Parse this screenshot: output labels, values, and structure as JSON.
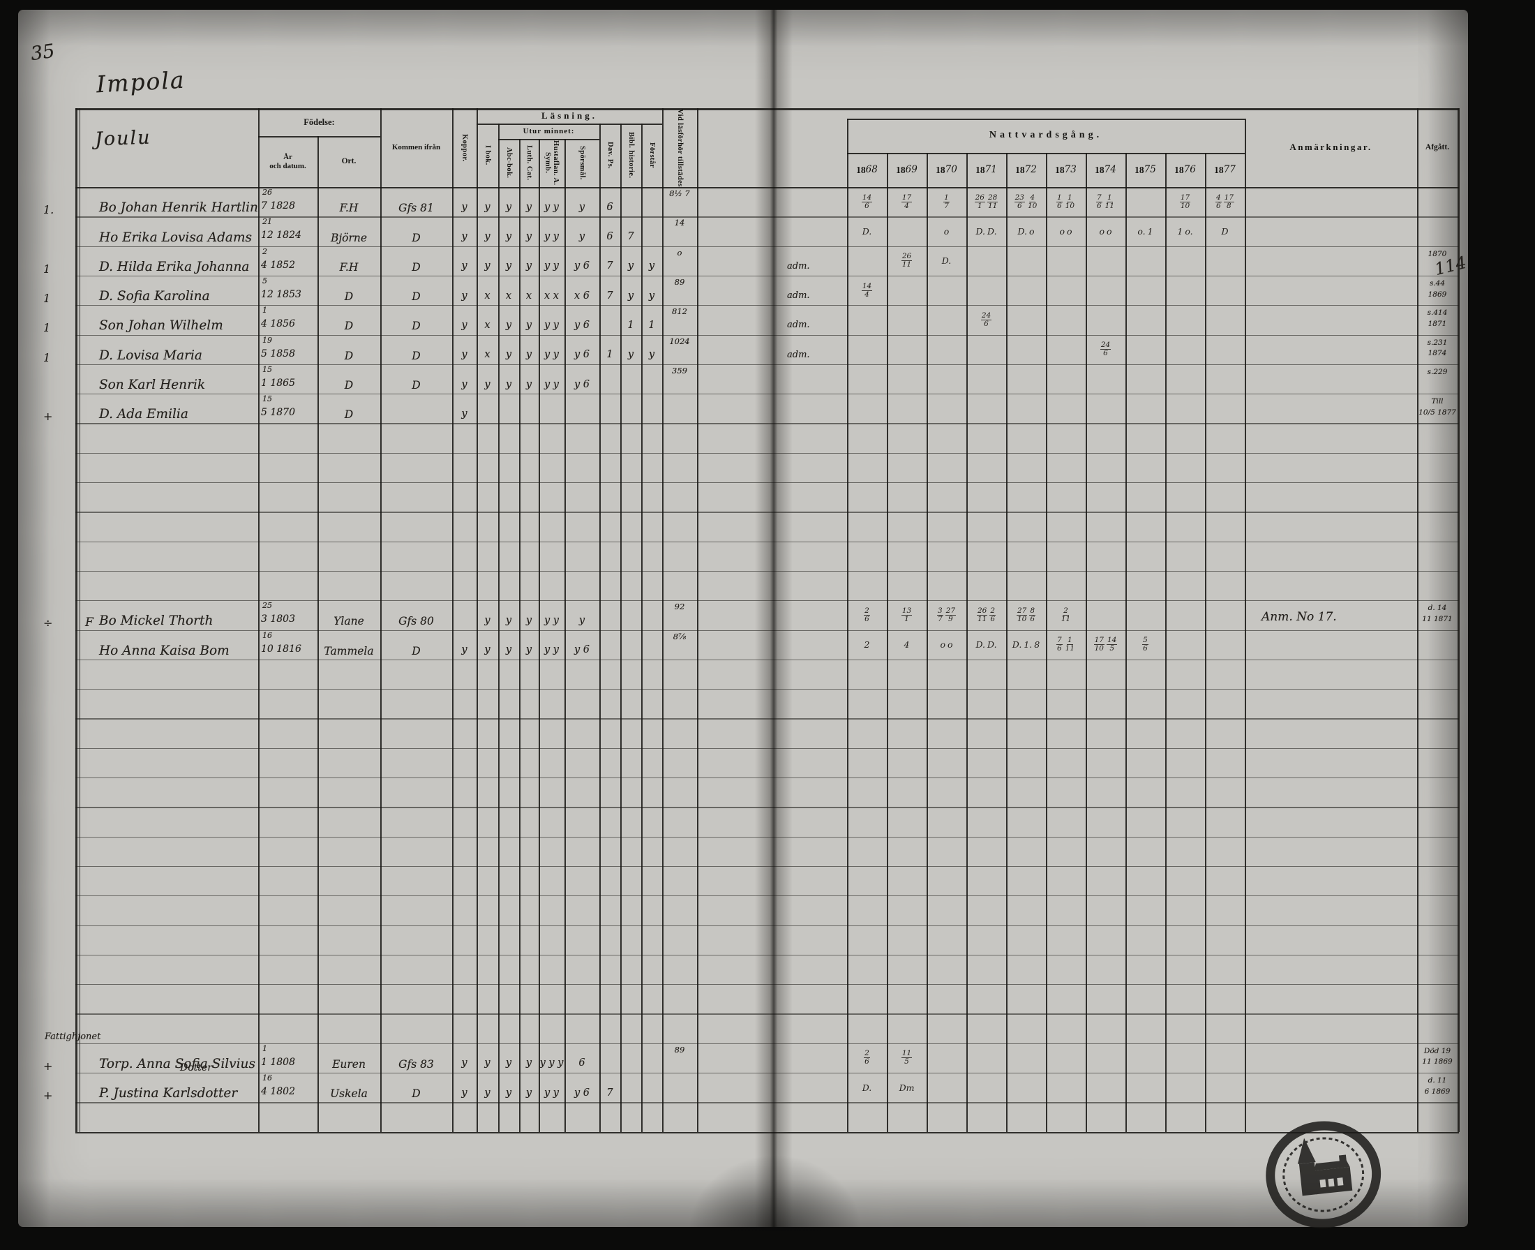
{
  "page": {
    "number": "35",
    "title": "Impola",
    "subtitle": "Joulu"
  },
  "header": {
    "birth_group": "Födelse:",
    "birth_date": "År och datum.",
    "birth_place": "Ort.",
    "arrived_from": "Kommen ifrån",
    "smallpox": "Koppor.",
    "reading_group": "Läsning.",
    "in_book": "I bok.",
    "by_heart": "Utur minnet:",
    "abc_book": "Abc-bok.",
    "luth_cat": "Luth. Cat.",
    "symb": "Hustaflan. A. Symb.",
    "questions": "Spörsmål.",
    "dav_ps": "Dav. Ps.",
    "bibl_hist": "Bibl. historie.",
    "understands": "Förstår",
    "attended": "Vid läsförhör tillstädes",
    "communion_group": "Nattvardsgång.",
    "years": [
      "1868",
      "1869",
      "1870",
      "1871",
      "1872",
      "1873",
      "1874",
      "1875",
      "1876",
      "1877"
    ],
    "remarks": "Anmärkningar.",
    "departed": "Afgått."
  },
  "section_heading": "Fattighjonet",
  "marginal_note": "114",
  "stamp": "church-parish-seal",
  "rows": [
    {
      "mark": "1.",
      "name": "Bo Johan Henrik Hartlin",
      "dtop": "26",
      "dbot": "7 1828",
      "ort": "F.H",
      "from": "Gfs 81",
      "marks": [
        "y",
        "y",
        "y",
        "y",
        "y y",
        "y",
        "6",
        "",
        ""
      ],
      "vid": "8½ 7",
      "comm": [
        "14/6",
        "17/4",
        "1/7",
        "26/1 28/11",
        "23/6 4/10",
        "1/6 1/10",
        "7/6 1/11",
        "",
        "17/10",
        "4/6 17/8"
      ]
    },
    {
      "name": "Ho Erika Lovisa Adams",
      "dtop": "21",
      "dbot": "12 1824",
      "ort": "Björne",
      "from": "D",
      "marks": [
        "y",
        "y",
        "y",
        "y",
        "y y",
        "y",
        "6",
        "7",
        ""
      ],
      "vid": "14",
      "comm": [
        "D.",
        "",
        "o",
        "D. D.",
        "D. o",
        "o o",
        "o o",
        "o. 1",
        "1 o.",
        "D"
      ]
    },
    {
      "mark": "1",
      "name": "D. Hilda Erika Johanna",
      "dtop": "2",
      "dbot": "4 1852",
      "ort": "F.H",
      "from": "D",
      "marks": [
        "y",
        "y",
        "y",
        "y",
        "y y",
        "y 6",
        "7",
        "y",
        "y"
      ],
      "vid": "o",
      "adm": "adm.",
      "comm": [
        "",
        "26/11",
        "D.",
        "",
        "",
        "",
        "",
        "",
        "",
        ""
      ],
      "afg": "1870"
    },
    {
      "mark": "1",
      "name": "D. Sofia Karolina",
      "dtop": "5",
      "dbot": "12 1853",
      "ort": "D",
      "from": "D",
      "marks": [
        "y",
        "x",
        "x",
        "x",
        "x x",
        "x 6",
        "7",
        "y",
        "y"
      ],
      "vid": "89",
      "adm": "adm.",
      "comm": [
        "14/4",
        "",
        "",
        "",
        "",
        "",
        "",
        "",
        "",
        ""
      ],
      "afg": "s.44",
      "afg2": "1869"
    },
    {
      "mark": "1",
      "name": "Son Johan Wilhelm",
      "dtop": "1",
      "dbot": "4 1856",
      "ort": "D",
      "from": "D",
      "marks": [
        "y",
        "x",
        "y",
        "y",
        "y y",
        "y 6",
        "",
        "1",
        "1"
      ],
      "vid": "812",
      "adm": "adm.",
      "comm": [
        "",
        "",
        "",
        "24/6",
        "",
        "",
        "",
        "",
        "",
        ""
      ],
      "afg": "s.414",
      "afg2": "1871"
    },
    {
      "mark": "1",
      "name": "D. Lovisa Maria",
      "dtop": "19",
      "dbot": "5 1858",
      "ort": "D",
      "from": "D",
      "marks": [
        "y",
        "x",
        "y",
        "y",
        "y y",
        "y 6",
        "1",
        "y",
        "y"
      ],
      "vid": "1024",
      "adm": "adm.",
      "comm": [
        "",
        "",
        "",
        "",
        "",
        "",
        "24/6",
        "",
        "",
        ""
      ],
      "afg": "s.231",
      "afg2": "1874"
    },
    {
      "name": "Son Karl Henrik",
      "dtop": "15",
      "dbot": "1 1865",
      "ort": "D",
      "from": "D",
      "marks": [
        "y",
        "y",
        "y",
        "y",
        "y y",
        "y 6",
        "",
        "",
        ""
      ],
      "vid": "359",
      "afg": "s.229"
    },
    {
      "mark": "+",
      "name": "D. Ada Emilia",
      "dtop": "15",
      "dbot": "5 1870",
      "ort": "D",
      "from": "",
      "marks": [
        "y",
        "",
        "",
        "",
        "",
        "",
        "",
        "",
        ""
      ],
      "afg": "Till",
      "afg2": "10/5 1877"
    },
    {},
    {},
    {},
    {},
    {},
    {},
    {
      "mark": "÷",
      "pre": "F",
      "name": "Bo Mickel Thorth",
      "dtop": "25",
      "dbot": "3 1803",
      "ort": "Ylane",
      "from": "Gfs 80",
      "marks": [
        "",
        "y",
        "y",
        "y",
        "y y",
        "y",
        "",
        "",
        ""
      ],
      "vid": "92",
      "comm": [
        "2/6",
        "13/1",
        "3/7 27/9",
        "26/11 2/6",
        "27/10 8/6",
        "2/11",
        "",
        "",
        "",
        ""
      ],
      "anm": "Anm. No 17.",
      "afg": "d. 14",
      "afg2": "11 1871"
    },
    {
      "name": "Ho Anna Kaisa Bom",
      "dtop": "16",
      "dbot": "10 1816",
      "ort": "Tammela",
      "from": "D",
      "marks": [
        "y",
        "y",
        "y",
        "y",
        "y y",
        "y 6",
        "",
        "",
        ""
      ],
      "vid": "8⅞",
      "comm": [
        "2",
        "4",
        "o o",
        "D. D.",
        "D. 1. 8",
        "7/6 1/11",
        "17/10 14/5",
        "5/6",
        "",
        ""
      ]
    },
    {},
    {},
    {},
    {},
    {},
    {},
    {},
    {},
    {},
    {},
    {},
    {},
    {},
    {
      "mark": "+",
      "heading": "Fattighjonet",
      "name": "Torp. Anna Sofia Silvius",
      "name2": "Dotter",
      "dtop": "1",
      "dbot": "1 1808",
      "ort": "Euren",
      "from": "Gfs 83",
      "marks": [
        "y",
        "y",
        "y",
        "y",
        "y y y",
        "6",
        "",
        "",
        ""
      ],
      "vid": "89",
      "comm": [
        "2/6",
        "11/5",
        "",
        "",
        "",
        "",
        "",
        "",
        "",
        ""
      ],
      "afg": "Död 19",
      "afg2": "11 1869"
    },
    {
      "mark": "+",
      "name": "P. Justina Karlsdotter",
      "dtop": "16",
      "dbot": "4 1802",
      "ort": "Uskela",
      "from": "D",
      "marks": [
        "y",
        "y",
        "y",
        "y",
        "y y",
        "y 6",
        "7",
        "",
        ""
      ],
      "comm": [
        "D.",
        "Dm",
        "",
        "",
        "",
        "",
        "",
        "",
        "",
        ""
      ],
      "afg": "d. 11",
      "afg2": "6 1869"
    },
    {}
  ]
}
